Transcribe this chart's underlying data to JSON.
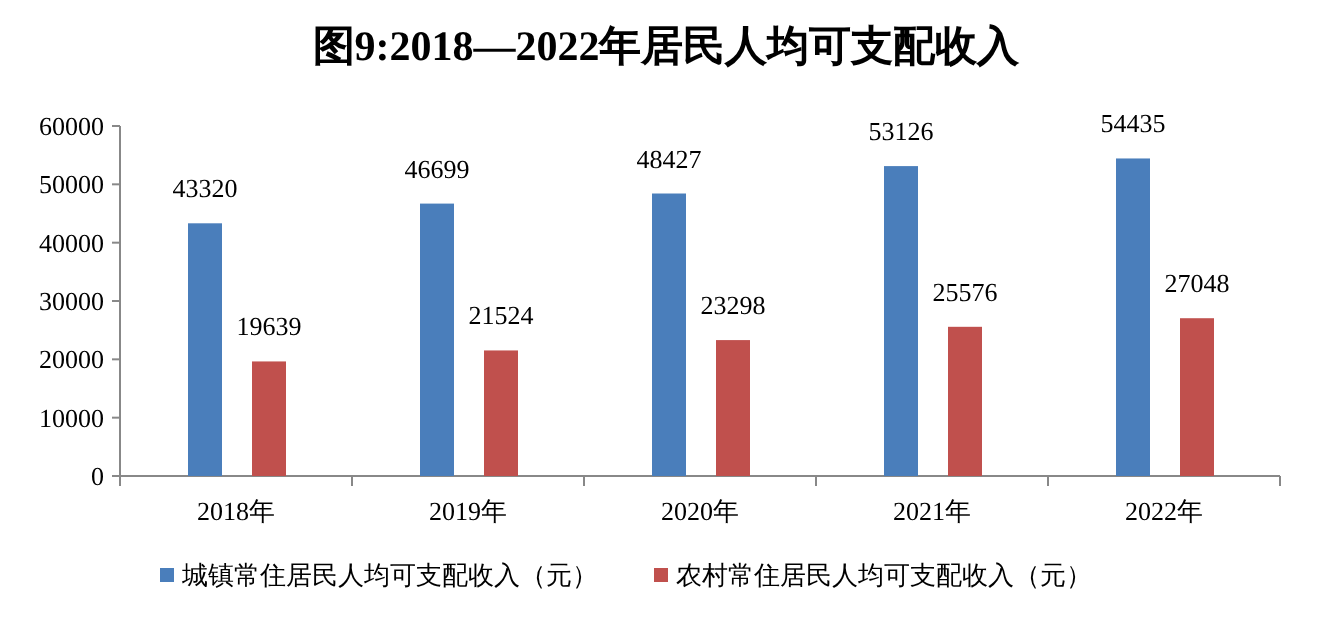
{
  "chart_data": {
    "type": "bar",
    "title": "图9:2018—2022年居民人均可支配收入",
    "categories": [
      "2018年",
      "2019年",
      "2020年",
      "2021年",
      "2022年"
    ],
    "series": [
      {
        "name": "城镇常住居民人均可支配收入（元）",
        "color": "#4a7ebb",
        "values": [
          43320,
          46699,
          48427,
          53126,
          54435
        ]
      },
      {
        "name": "农村常住居民人均可支配收入（元）",
        "color": "#c0504d",
        "values": [
          19639,
          21524,
          23298,
          25576,
          27048
        ]
      }
    ],
    "ylim": [
      0,
      60000
    ],
    "yticks": [
      0,
      10000,
      20000,
      30000,
      40000,
      50000,
      60000
    ],
    "data_labels": true,
    "legend": "bottom",
    "grid": false
  }
}
